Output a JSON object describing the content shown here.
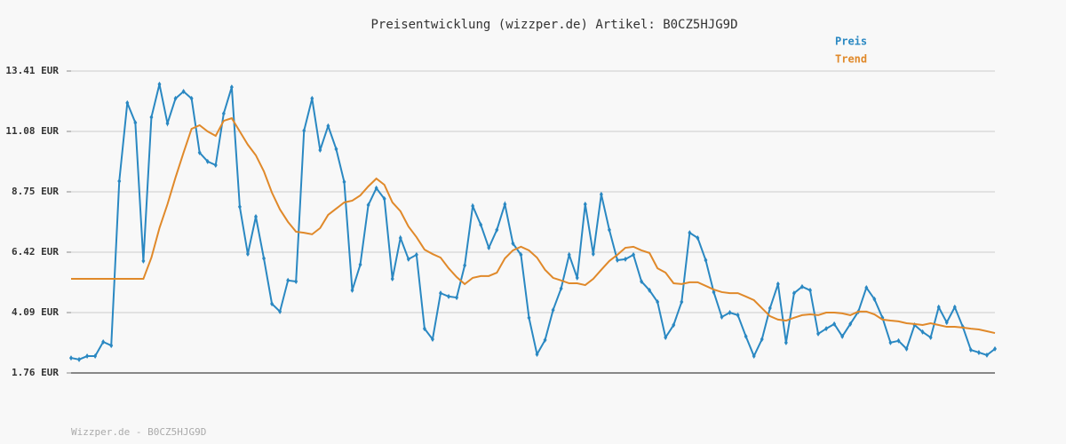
{
  "chart_data": {
    "type": "line",
    "title": "Preisentwicklung (wizzper.de) Artikel: B0CZ5HJG9D",
    "footer": "Wizzper.de - B0CZ5HJG9D",
    "ylim": [
      1.76,
      13.41
    ],
    "yticks": [
      {
        "value": 1.76,
        "label": "1.76 EUR"
      },
      {
        "value": 4.09,
        "label": "4.09 EUR"
      },
      {
        "value": 6.42,
        "label": "6.42 EUR"
      },
      {
        "value": 8.75,
        "label": "8.75 EUR"
      },
      {
        "value": 11.08,
        "label": "11.08 EUR"
      },
      {
        "value": 13.41,
        "label": "13.41 EUR"
      }
    ],
    "grid": true,
    "legend": "top-right",
    "series": [
      {
        "name": "Preis",
        "color": "#2a88c2",
        "markers": true,
        "values": [
          2.34,
          2.28,
          2.41,
          2.41,
          2.96,
          2.82,
          9.16,
          12.18,
          11.42,
          6.08,
          11.63,
          12.9,
          11.39,
          12.35,
          12.62,
          12.35,
          10.26,
          9.92,
          9.78,
          11.77,
          12.79,
          8.17,
          6.35,
          7.79,
          6.18,
          4.43,
          4.13,
          5.33,
          5.29,
          11.11,
          12.35,
          10.36,
          11.29,
          10.4,
          9.13,
          4.95,
          5.94,
          8.24,
          8.89,
          8.48,
          5.39,
          6.97,
          6.15,
          6.32,
          3.47,
          3.06,
          4.84,
          4.71,
          4.67,
          5.91,
          8.2,
          7.48,
          6.59,
          7.28,
          8.27,
          6.76,
          6.32,
          3.89,
          2.48,
          3.03,
          4.19,
          5.02,
          6.32,
          5.43,
          8.27,
          6.35,
          8.65,
          7.28,
          6.11,
          6.15,
          6.32,
          5.29,
          4.95,
          4.5,
          3.13,
          3.61,
          4.5,
          7.17,
          6.97,
          6.11,
          4.88,
          3.92,
          4.09,
          3.99,
          3.17,
          2.41,
          3.06,
          4.26,
          5.19,
          2.93,
          4.84,
          5.09,
          4.95,
          3.27,
          3.47,
          3.65,
          3.17,
          3.65,
          4.13,
          5.05,
          4.61,
          3.89,
          2.93,
          3.0,
          2.69,
          3.61,
          3.34,
          3.13,
          4.3,
          3.71,
          4.3,
          3.54,
          2.65,
          2.55,
          2.45,
          2.69
        ]
      },
      {
        "name": "Trend",
        "color": "#e0892a",
        "markers": false,
        "values": [
          5.39,
          5.39,
          5.39,
          5.39,
          5.39,
          5.39,
          5.39,
          5.39,
          5.39,
          5.39,
          6.21,
          7.35,
          8.27,
          9.3,
          10.26,
          11.18,
          11.32,
          11.08,
          10.91,
          11.49,
          11.59,
          11.08,
          10.57,
          10.16,
          9.54,
          8.72,
          8.07,
          7.59,
          7.21,
          7.17,
          7.11,
          7.35,
          7.86,
          8.1,
          8.34,
          8.41,
          8.61,
          8.96,
          9.26,
          9.02,
          8.34,
          8.0,
          7.41,
          7.0,
          6.52,
          6.35,
          6.21,
          5.8,
          5.46,
          5.19,
          5.43,
          5.5,
          5.5,
          5.63,
          6.18,
          6.49,
          6.63,
          6.49,
          6.21,
          5.74,
          5.43,
          5.33,
          5.22,
          5.22,
          5.15,
          5.39,
          5.74,
          6.08,
          6.32,
          6.59,
          6.63,
          6.49,
          6.39,
          5.8,
          5.63,
          5.22,
          5.19,
          5.26,
          5.26,
          5.12,
          4.98,
          4.88,
          4.84,
          4.84,
          4.71,
          4.57,
          4.26,
          3.95,
          3.82,
          3.78,
          3.89,
          3.99,
          4.02,
          3.99,
          4.09,
          4.09,
          4.06,
          3.99,
          4.13,
          4.13,
          4.02,
          3.82,
          3.78,
          3.75,
          3.68,
          3.65,
          3.61,
          3.68,
          3.61,
          3.54,
          3.54,
          3.51,
          3.47,
          3.44,
          3.37,
          3.3
        ]
      }
    ]
  }
}
